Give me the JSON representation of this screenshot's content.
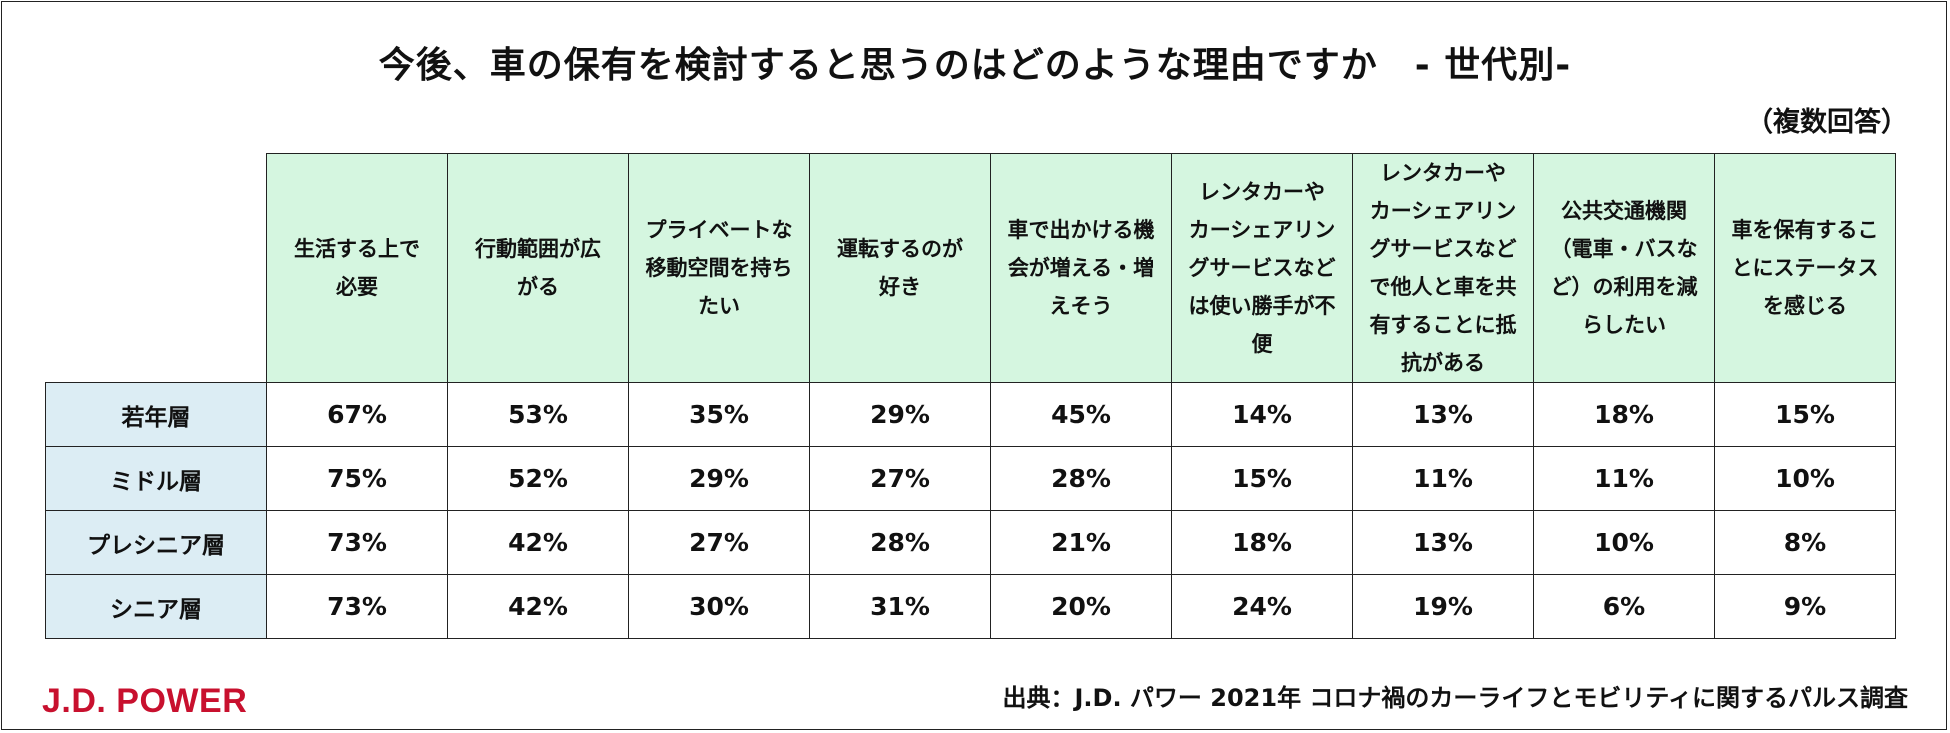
{
  "title": "今後、車の保有を検討すると思うのはどのような理由ですか　- 世代別-",
  "note": "（複数回答）",
  "logo": "J.D. POWER",
  "source": "出典：J.D. パワー 2021年 コロナ禍のカーライフとモビリティに関するパルス調査",
  "colors": {
    "header_bg": "#d5f6e0",
    "row_header_bg": "#dcedf4",
    "logo": "#c8102e"
  },
  "chart_data": {
    "type": "table",
    "title": "今後、車の保有を検討すると思うのはどのような理由ですか　- 世代別-",
    "columns": [
      "生活する上で\n必要",
      "行動範囲が広\nがる",
      "プライベートな\n移動空間を持ち\nたい",
      "運転するのが\n好き",
      "車で出かける機\n会が増える・増\nえそう",
      "レンタカーや\nカーシェアリン\nグサービスなど\nは使い勝手が不\n便",
      "レンタカーや\nカーシェアリン\nグサービスなど\nで他人と車を共\n有することに抵\n抗がある",
      "公共交通機関\n（電車・バスな\nど）の利用を減\nらしたい",
      "車を保有するこ\nとにステータス\nを感じる"
    ],
    "rows": [
      {
        "label": "若年層",
        "values": [
          "67%",
          "53%",
          "35%",
          "29%",
          "45%",
          "14%",
          "13%",
          "18%",
          "15%"
        ]
      },
      {
        "label": "ミドル層",
        "values": [
          "75%",
          "52%",
          "29%",
          "27%",
          "28%",
          "15%",
          "11%",
          "11%",
          "10%"
        ]
      },
      {
        "label": "プレシニア層",
        "values": [
          "73%",
          "42%",
          "27%",
          "28%",
          "21%",
          "18%",
          "13%",
          "10%",
          "8%"
        ]
      },
      {
        "label": "シニア層",
        "values": [
          "73%",
          "42%",
          "30%",
          "31%",
          "20%",
          "24%",
          "19%",
          "6%",
          "9%"
        ]
      }
    ]
  }
}
